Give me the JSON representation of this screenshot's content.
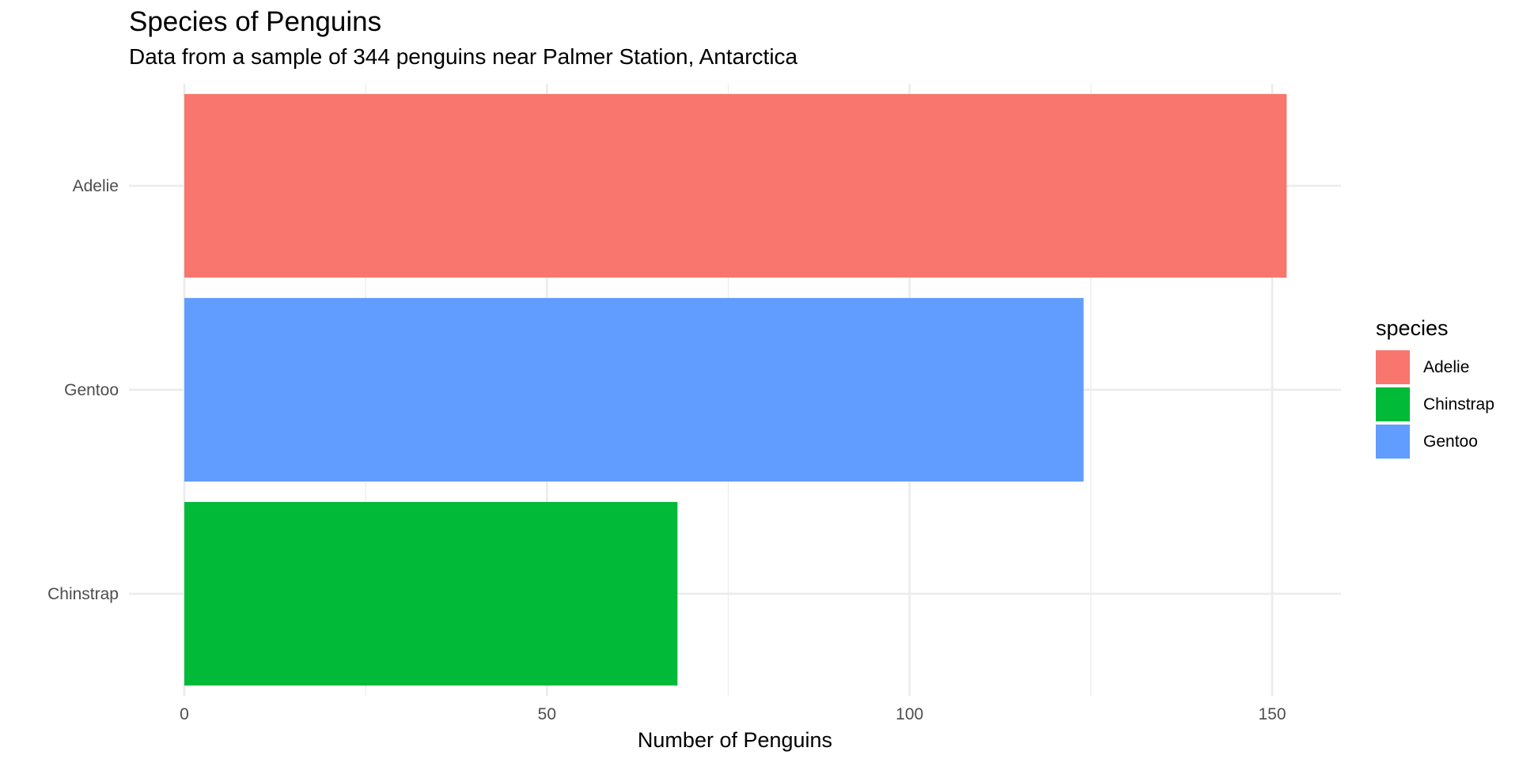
{
  "chart_data": {
    "type": "bar",
    "orientation": "horizontal",
    "title": "Species of Penguins",
    "subtitle": "Data from a sample of 344 penguins near Palmer Station, Antarctica",
    "xlabel": "Number of Penguins",
    "ylabel": "",
    "categories": [
      "Adelie",
      "Gentoo",
      "Chinstrap"
    ],
    "values": [
      152,
      124,
      68
    ],
    "colors": [
      "#F8766D",
      "#619CFF",
      "#00BA38"
    ],
    "xlim": [
      0,
      160
    ],
    "xticks": [
      0,
      50,
      100,
      150
    ],
    "grid": true,
    "legend": {
      "title": "species",
      "placement": "right",
      "items": [
        {
          "label": "Adelie",
          "color": "#F8766D"
        },
        {
          "label": "Chinstrap",
          "color": "#00BA38"
        },
        {
          "label": "Gentoo",
          "color": "#619CFF"
        }
      ]
    }
  }
}
